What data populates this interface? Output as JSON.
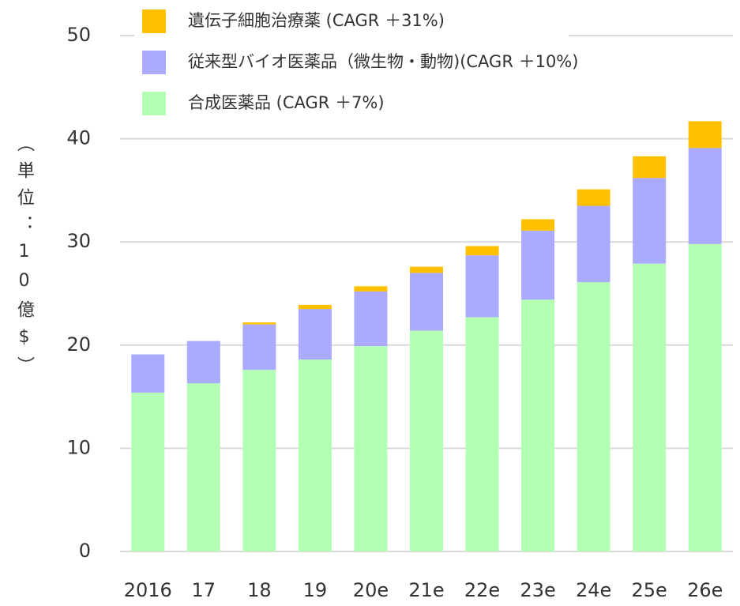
{
  "chart_data": {
    "type": "stacked_bar",
    "y_label": "（単位：10億$）",
    "categories": [
      "2016",
      "17",
      "18",
      "19",
      "20e",
      "21e",
      "22e",
      "23e",
      "24e",
      "25e",
      "26e"
    ],
    "series": [
      {
        "name": "合成医薬品 (CAGR ＋7%)",
        "color": "#b3ffb3",
        "values": [
          15.4,
          16.3,
          17.6,
          18.6,
          19.9,
          21.4,
          22.7,
          24.4,
          26.1,
          27.9,
          29.8
        ]
      },
      {
        "name": "従来型バイオ医薬品（微生物・動物)(CAGR ＋10%)",
        "color": "#aaaaff",
        "values": [
          3.7,
          4.1,
          4.4,
          4.9,
          5.3,
          5.6,
          6.0,
          6.7,
          7.4,
          8.3,
          9.3
        ]
      },
      {
        "name": "遺伝子細胞治療薬 (CAGR ＋31%)",
        "color": "#ffc000",
        "values": [
          0,
          0,
          0.2,
          0.4,
          0.5,
          0.6,
          0.9,
          1.1,
          1.6,
          2.1,
          2.6
        ]
      }
    ],
    "ylim": [
      0,
      50
    ],
    "yticks": [
      0,
      10,
      20,
      30,
      40,
      50
    ],
    "grid": true
  }
}
